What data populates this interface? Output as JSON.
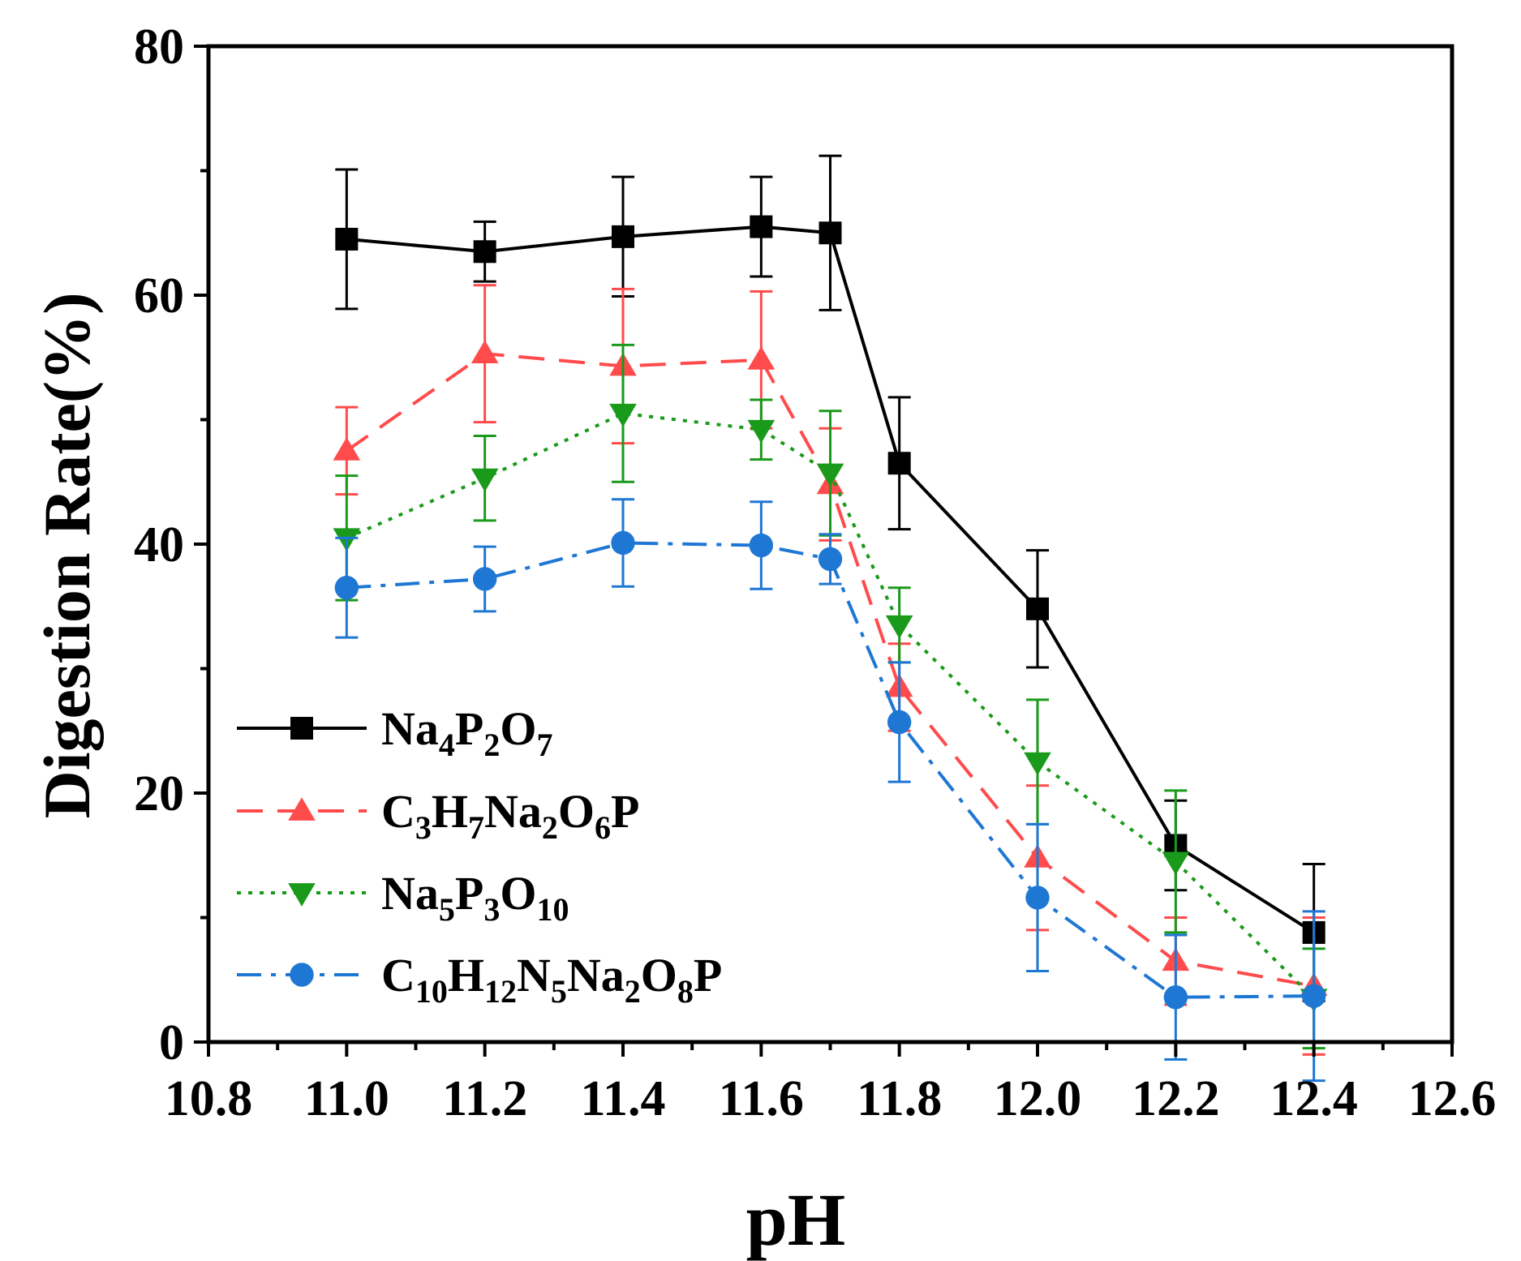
{
  "chart_data": {
    "type": "line",
    "title": "",
    "xlabel": "pH",
    "ylabel": "Digestion Rate(%)",
    "xlim": [
      10.8,
      12.6
    ],
    "ylim": [
      0,
      80
    ],
    "xticks": [
      "10.8",
      "11.0",
      "11.2",
      "11.4",
      "11.6",
      "11.8",
      "12.0",
      "12.2",
      "12.4",
      "12.6"
    ],
    "xtick_values": [
      10.8,
      11.0,
      11.2,
      11.4,
      11.6,
      11.8,
      12.0,
      12.2,
      12.4,
      12.6
    ],
    "yticks": [
      "0",
      "20",
      "40",
      "60",
      "80"
    ],
    "ytick_values": [
      0,
      20,
      40,
      60,
      80
    ],
    "x": [
      11.0,
      11.2,
      11.4,
      11.6,
      11.7,
      11.8,
      12.0,
      12.2,
      12.4
    ],
    "legend_position": "lower-left",
    "series": [
      {
        "name": "Na4P2O7",
        "label_parts": [
          [
            "Na",
            ""
          ],
          [
            "4",
            "sub"
          ],
          [
            "P",
            ""
          ],
          [
            "2",
            "sub"
          ],
          [
            "O",
            ""
          ],
          [
            "7",
            "sub"
          ]
        ],
        "color": "#000000",
        "dash": "solid",
        "marker": "square",
        "values": [
          64.5,
          63.5,
          64.7,
          65.5,
          65.0,
          46.5,
          34.8,
          15.8,
          8.8
        ],
        "errors": [
          5.6,
          2.4,
          4.8,
          4.0,
          6.2,
          5.3,
          4.7,
          3.6,
          5.5
        ]
      },
      {
        "name": "C3H7Na2O6P",
        "label_parts": [
          [
            "C",
            ""
          ],
          [
            "3",
            "sub"
          ],
          [
            "H",
            ""
          ],
          [
            "7",
            "sub"
          ],
          [
            "Na",
            ""
          ],
          [
            "2",
            "sub"
          ],
          [
            "O",
            ""
          ],
          [
            "6",
            "sub"
          ],
          [
            "P",
            ""
          ]
        ],
        "color": "#ff4b4b",
        "dash": "dashed",
        "marker": "triangle-up",
        "values": [
          47.5,
          55.3,
          54.3,
          54.8,
          44.8,
          28.5,
          14.8,
          6.5,
          4.5
        ],
        "errors": [
          3.5,
          5.5,
          6.2,
          5.5,
          4.5,
          3.5,
          5.8,
          3.5,
          5.5
        ]
      },
      {
        "name": "Na5P3O10",
        "label_parts": [
          [
            "Na",
            ""
          ],
          [
            "5",
            "sub"
          ],
          [
            "P",
            ""
          ],
          [
            "3",
            "sub"
          ],
          [
            "O",
            ""
          ],
          [
            "10",
            "sub"
          ]
        ],
        "color": "#1a9a1a",
        "dash": "dotted",
        "marker": "triangle-down",
        "values": [
          40.5,
          45.3,
          50.5,
          49.2,
          45.7,
          33.5,
          22.5,
          14.5,
          3.5
        ],
        "errors": [
          5.0,
          3.4,
          5.5,
          2.4,
          5.0,
          3.0,
          5.0,
          5.7,
          4.0
        ]
      },
      {
        "name": "C10H12N5Na2O8P",
        "label_parts": [
          [
            "C",
            ""
          ],
          [
            "10",
            "sub"
          ],
          [
            "H",
            ""
          ],
          [
            "12",
            "sub"
          ],
          [
            "N",
            ""
          ],
          [
            "5",
            "sub"
          ],
          [
            "Na",
            ""
          ],
          [
            "2",
            "sub"
          ],
          [
            "O",
            ""
          ],
          [
            "8",
            "sub"
          ],
          [
            "P",
            ""
          ]
        ],
        "color": "#1f77d4",
        "dash": "dashdot",
        "marker": "circle",
        "values": [
          36.5,
          37.2,
          40.1,
          39.9,
          38.8,
          25.7,
          11.6,
          3.6,
          3.7
        ],
        "errors": [
          4.0,
          2.6,
          3.5,
          3.5,
          2.0,
          4.8,
          5.9,
          5.0,
          6.8
        ]
      }
    ]
  }
}
